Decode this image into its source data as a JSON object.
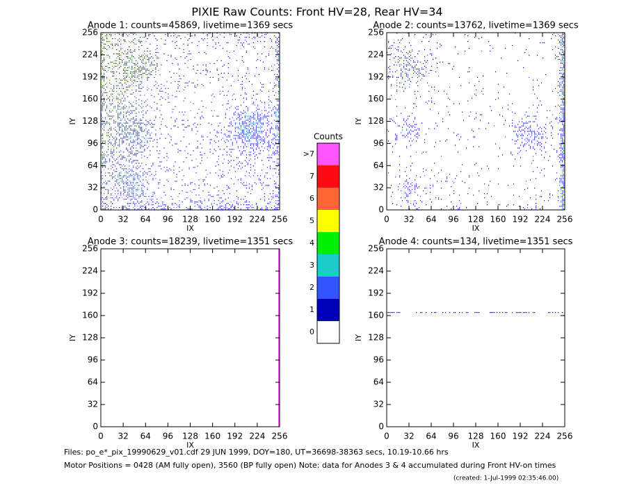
{
  "header": {
    "title": "PIXIE Raw Counts:  Front HV=28, Rear HV=34"
  },
  "chart_data": [
    {
      "type": "heatmap",
      "title": "Anode 1: counts=45869, livetime=1369 secs",
      "xlabel": "IX",
      "ylabel": "IY",
      "xlim": [
        0,
        256
      ],
      "ylim": [
        0,
        256
      ],
      "xticks": [
        0,
        32,
        64,
        96,
        128,
        160,
        192,
        224,
        256
      ],
      "yticks": [
        0,
        32,
        64,
        96,
        128,
        160,
        192,
        224,
        256
      ]
    },
    {
      "type": "heatmap",
      "title": "Anode 2: counts=13762, livetime=1369 secs",
      "xlabel": "IX",
      "ylabel": "IY",
      "xlim": [
        0,
        256
      ],
      "ylim": [
        0,
        256
      ],
      "xticks": [
        0,
        32,
        64,
        96,
        128,
        160,
        192,
        224,
        256
      ],
      "yticks": [
        0,
        32,
        64,
        96,
        128,
        160,
        192,
        224,
        256
      ]
    },
    {
      "type": "heatmap",
      "title": "Anode 3: counts=18239, livetime=1351 secs",
      "xlabel": "IX",
      "ylabel": "IY",
      "xlim": [
        0,
        256
      ],
      "ylim": [
        0,
        256
      ],
      "xticks": [
        0,
        32,
        64,
        96,
        128,
        160,
        192,
        224,
        256
      ],
      "yticks": [
        0,
        32,
        64,
        96,
        128,
        160,
        192,
        224,
        256
      ]
    },
    {
      "type": "heatmap",
      "title": "Anode 4: counts=134, livetime=1351 secs",
      "xlabel": "IX",
      "ylabel": "IY",
      "xlim": [
        0,
        256
      ],
      "ylim": [
        0,
        256
      ],
      "xticks": [
        0,
        32,
        64,
        96,
        128,
        160,
        192,
        224,
        256
      ],
      "yticks": [
        0,
        32,
        64,
        96,
        128,
        160,
        192,
        224,
        256
      ]
    }
  ],
  "colorbar": {
    "title": "Counts",
    "levels": [
      {
        "label": ">7",
        "color": "#ff55ff"
      },
      {
        "label": "7",
        "color": "#ff0a14"
      },
      {
        "label": "6",
        "color": "#ff6633"
      },
      {
        "label": "5",
        "color": "#ffff00"
      },
      {
        "label": "4",
        "color": "#00ee00"
      },
      {
        "label": "3",
        "color": "#1ecbcb"
      },
      {
        "label": "2",
        "color": "#3355ff"
      },
      {
        "label": "1",
        "color": "#0000bb"
      },
      {
        "label": "0",
        "color": "#ffffff"
      }
    ]
  },
  "footer": {
    "files": "Files: po_e*_pix_19990629_v01.cdf    29 JUN 1999, DOY=180, UT=36698-38363 secs, 10.19-10.66 hrs",
    "motor": "Motor Positions = 0428 (AM fully open), 3560 (BP fully open)    Note: data for Anodes 3 & 4 accumulated during Front HV-on times",
    "created": "(created:  1-Jul-1999 02:35:46.00)"
  }
}
